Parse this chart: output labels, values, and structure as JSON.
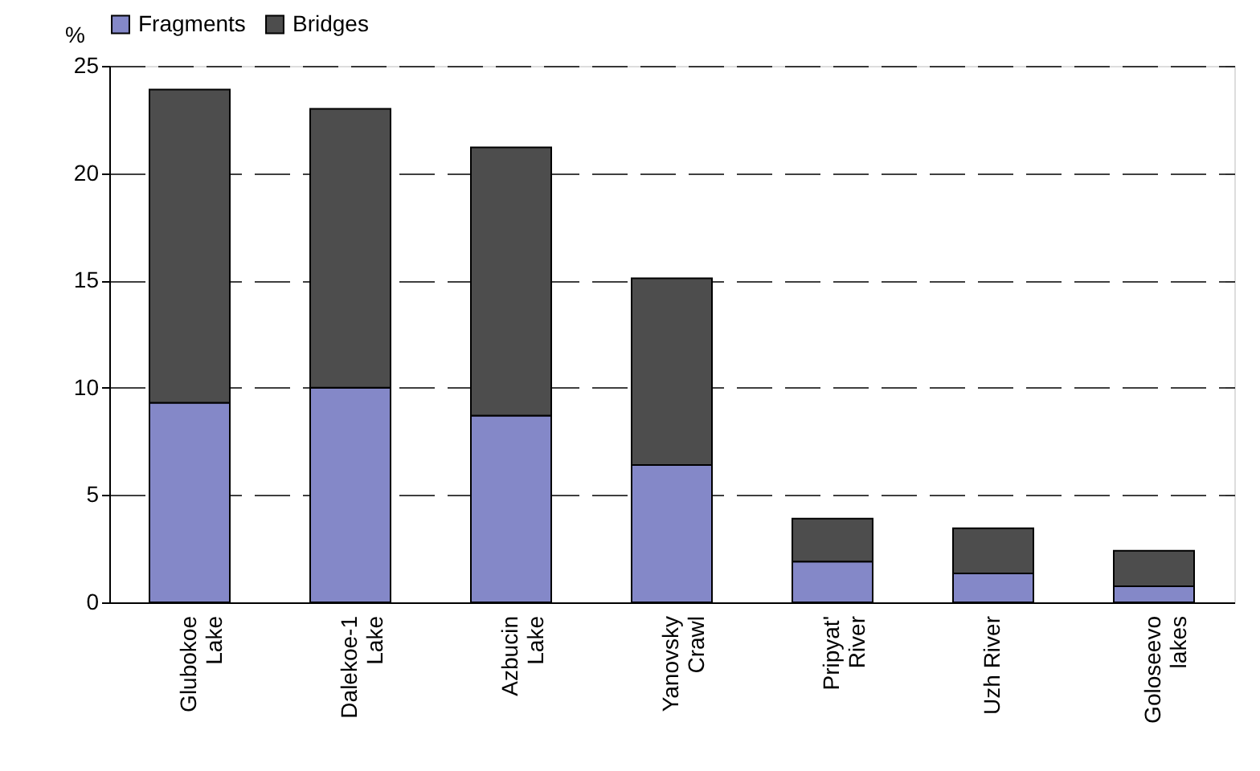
{
  "chart_data": {
    "type": "bar",
    "stacked": true,
    "ylabel": "%",
    "categories": [
      "Glubokoe\nLake",
      "Dalekoe-1\nLake",
      "Azbucin\nLake",
      "Yanovsky\nCrawl",
      "Pripyat'\nRiver",
      "Uzh River",
      "Goloseevo\nlakes"
    ],
    "series": [
      {
        "name": "Fragments",
        "color": "#8488c8",
        "values": [
          9.3,
          10.0,
          8.7,
          6.4,
          1.9,
          1.35,
          0.75
        ]
      },
      {
        "name": "Bridges",
        "color": "#4d4d4d",
        "values": [
          14.6,
          13.0,
          12.5,
          8.7,
          2.0,
          2.1,
          1.65
        ]
      }
    ],
    "ylim": [
      0,
      25
    ],
    "yticks": [
      0,
      5,
      10,
      15,
      20,
      25
    ],
    "grid": "y",
    "legend": "top"
  }
}
